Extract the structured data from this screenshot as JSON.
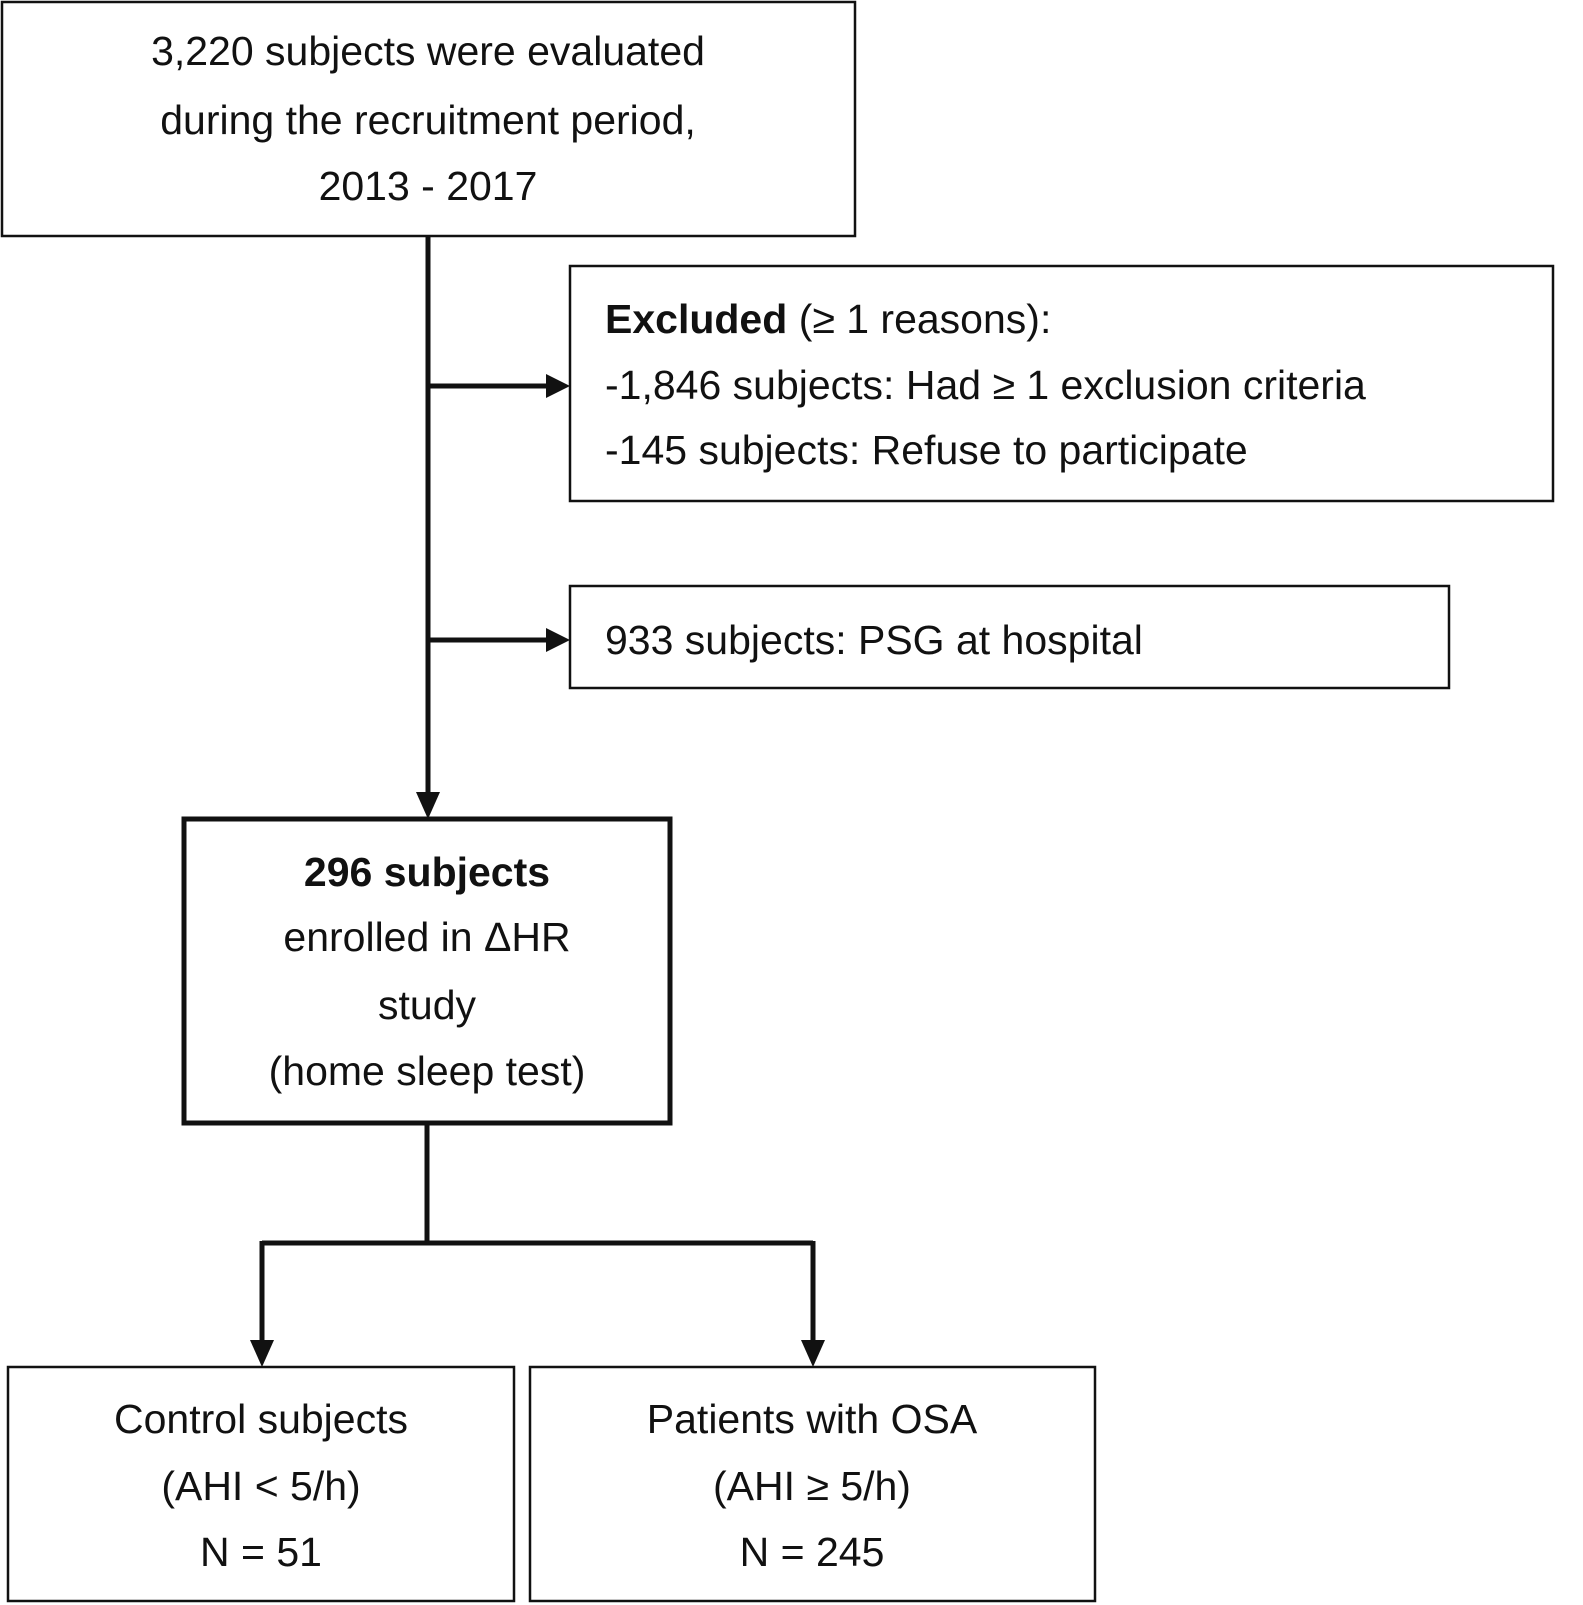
{
  "nodes": [
    {
      "lines": [
        "3,220 subjects were evaluated",
        "during the recruitment period,",
        "2013 - 2017"
      ]
    },
    {
      "title": "Excluded",
      "title_note": "(≥ 1 reasons):",
      "lines": [
        "-1,846 subjects: Had ≥ 1 exclusion criteria",
        "-145 subjects: Refuse to participate"
      ]
    },
    {
      "lines": [
        "933 subjects: PSG at hospital"
      ]
    },
    {
      "title": "296 subjects",
      "lines": [
        "enrolled in ΔHR",
        "study",
        "(home sleep test)"
      ]
    },
    {
      "lines": [
        "Control subjects",
        "(AHI < 5/h)",
        "N = 51"
      ]
    },
    {
      "lines": [
        "Patients with OSA",
        "(AHI ≥ 5/h)",
        "N = 245"
      ]
    }
  ]
}
